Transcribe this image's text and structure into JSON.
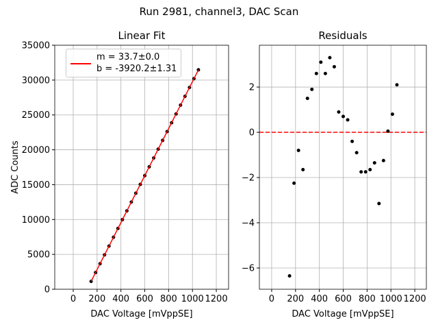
{
  "title": "Run 2981, channel3, DAC Scan",
  "chart_data": [
    {
      "type": "scatter",
      "title": "Linear Fit",
      "x_label": "DAC Voltage [mVppSE]",
      "y_label": "ADC Counts",
      "xlim": [
        -155,
        1303
      ],
      "ylim": [
        0,
        35000
      ],
      "xticks": [
        0,
        200,
        400,
        600,
        800,
        1000,
        1200
      ],
      "yticks": [
        0,
        5000,
        10000,
        15000,
        20000,
        25000,
        30000,
        35000
      ],
      "grid": true,
      "legend": "upper left",
      "series": [
        {
          "mode": "markers",
          "color": "#000000",
          "x": [
            150,
            187.5,
            225,
            262.5,
            300,
            337.5,
            375,
            412.5,
            450,
            487.5,
            525,
            562.5,
            600,
            637.5,
            675,
            712.5,
            750,
            787.5,
            825,
            862.5,
            900,
            937.5,
            975,
            1012.5,
            1050
          ],
          "values": [
            1128.45,
            2396.3,
            3661.5,
            4924.4,
            6191.3,
            7455.45,
            8719.9,
            9984.15,
            11247.4,
            12511.85,
            13775.2,
            15036.95,
            16300.5,
            17564.1,
            18826.9,
            20090.15,
            21353.05,
            22616.8,
            23880.65,
            25144.7,
            26406.65,
            27672.3,
            28937.35,
            30201.85,
            31466.9
          ]
        },
        {
          "mode": "line",
          "color": "#ff0000",
          "name": "m = 33.7±0.0\nb = -3920.2±1.31",
          "x": [
            150,
            1050
          ],
          "values": [
            1134.8,
            31464.8
          ]
        }
      ]
    },
    {
      "type": "scatter",
      "title": "Residuals",
      "x_label": "DAC Voltage [mVppSE]",
      "xlim": [
        -103,
        1297
      ],
      "ylim": [
        -6.94,
        3.85
      ],
      "xticks": [
        0,
        200,
        400,
        600,
        800,
        1000,
        1200
      ],
      "yticks": [
        {
          "value": -6,
          "label": "−6"
        },
        {
          "value": -4,
          "label": "−4"
        },
        {
          "value": -2,
          "label": "−2"
        },
        0,
        2
      ],
      "grid": true,
      "hline": {
        "value": 0,
        "color": "#ff0000",
        "style": "dashed"
      },
      "series": [
        {
          "mode": "markers",
          "color": "#000000",
          "x": [
            150,
            187.5,
            225,
            262.5,
            300,
            337.5,
            375,
            412.5,
            450,
            487.5,
            525,
            562.5,
            600,
            637.5,
            675,
            712.5,
            750,
            787.5,
            825,
            862.5,
            900,
            937.5,
            975,
            1012.5,
            1050
          ],
          "values": [
            -6.35,
            -2.25,
            -0.8,
            -1.65,
            1.5,
            1.9,
            2.6,
            3.1,
            2.6,
            3.3,
            2.9,
            0.9,
            0.7,
            0.55,
            -0.4,
            -0.9,
            -1.75,
            -1.75,
            -1.65,
            -1.35,
            -3.15,
            -1.25,
            0.05,
            0.8,
            2.1
          ]
        }
      ]
    }
  ]
}
